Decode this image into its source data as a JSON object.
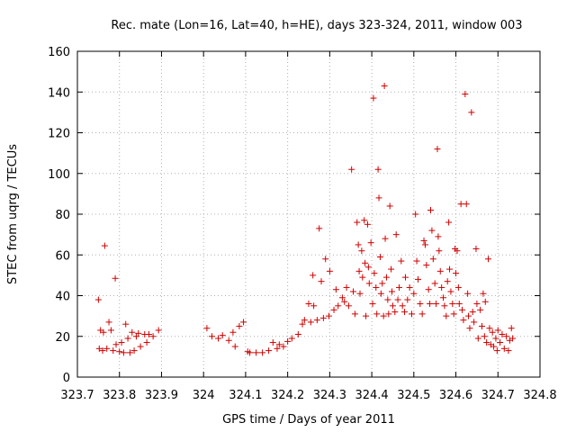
{
  "chart_data": {
    "type": "scatter",
    "title": "Rec. mate (Lon=16, Lat=40, h=HE), days 323-324, 2011, window 003",
    "xlabel": "GPS time / Days of year 2011",
    "ylabel": "STEC from uqrg / TECUs",
    "xlim": [
      323.7,
      324.8
    ],
    "ylim": [
      0,
      160
    ],
    "x_ticks": [
      "323.7",
      "323.8",
      "323.9",
      "324",
      "324.1",
      "324.2",
      "324.3",
      "324.4",
      "324.5",
      "324.6",
      "324.7",
      "324.8"
    ],
    "y_ticks": [
      "0",
      "20",
      "40",
      "60",
      "80",
      "100",
      "120",
      "140",
      "160"
    ],
    "grid": true,
    "marker": "plus",
    "color": "#d00000",
    "series": [
      {
        "points": [
          [
            323.75,
            38
          ],
          [
            323.752,
            14
          ],
          [
            323.755,
            23
          ],
          [
            323.76,
            13
          ],
          [
            323.765,
            64.5
          ],
          [
            323.762,
            22
          ],
          [
            323.77,
            14
          ],
          [
            323.775,
            27
          ],
          [
            323.78,
            23
          ],
          [
            323.785,
            13
          ],
          [
            323.79,
            48.5
          ],
          [
            323.792,
            16
          ],
          [
            323.8,
            12.5
          ],
          [
            323.805,
            17
          ],
          [
            323.81,
            12
          ],
          [
            323.815,
            26
          ],
          [
            323.82,
            19
          ],
          [
            323.825,
            12
          ],
          [
            323.83,
            22
          ],
          [
            323.835,
            13
          ],
          [
            323.84,
            20
          ],
          [
            323.845,
            21.5
          ],
          [
            323.85,
            15
          ],
          [
            323.86,
            21
          ],
          [
            323.865,
            17
          ],
          [
            323.87,
            21
          ],
          [
            323.88,
            20
          ],
          [
            323.893,
            23
          ],
          [
            324.008,
            24
          ],
          [
            324.02,
            20
          ],
          [
            324.035,
            19
          ],
          [
            324.045,
            20.5
          ],
          [
            324.06,
            18
          ],
          [
            324.07,
            22
          ],
          [
            324.075,
            15
          ],
          [
            324.085,
            25
          ],
          [
            324.095,
            27
          ],
          [
            324.105,
            12.5
          ],
          [
            324.11,
            12
          ],
          [
            324.125,
            12
          ],
          [
            324.14,
            12
          ],
          [
            324.155,
            13
          ],
          [
            324.165,
            17
          ],
          [
            324.175,
            14
          ],
          [
            324.18,
            16
          ],
          [
            324.19,
            15
          ],
          [
            324.2,
            17.5
          ],
          [
            324.21,
            19
          ],
          [
            324.225,
            21
          ],
          [
            324.235,
            26
          ],
          [
            324.24,
            28
          ],
          [
            324.25,
            36
          ],
          [
            324.255,
            27
          ],
          [
            324.26,
            50
          ],
          [
            324.262,
            35
          ],
          [
            324.27,
            28
          ],
          [
            324.275,
            73
          ],
          [
            324.28,
            47
          ],
          [
            324.285,
            29
          ],
          [
            324.29,
            58
          ],
          [
            324.298,
            30
          ],
          [
            324.3,
            52
          ],
          [
            324.31,
            33
          ],
          [
            324.315,
            43
          ],
          [
            324.32,
            35
          ],
          [
            324.33,
            39
          ],
          [
            324.335,
            37
          ],
          [
            324.34,
            44
          ],
          [
            324.345,
            35
          ],
          [
            324.352,
            102
          ],
          [
            324.356,
            42
          ],
          [
            324.36,
            31
          ],
          [
            324.365,
            76
          ],
          [
            324.368,
            65
          ],
          [
            324.37,
            52
          ],
          [
            324.372,
            41
          ],
          [
            324.376,
            62
          ],
          [
            324.378,
            49
          ],
          [
            324.382,
            77
          ],
          [
            324.384,
            56
          ],
          [
            324.386,
            30
          ],
          [
            324.39,
            75
          ],
          [
            324.392,
            54
          ],
          [
            324.394,
            46
          ],
          [
            324.398,
            66
          ],
          [
            324.402,
            36
          ],
          [
            324.404,
            137
          ],
          [
            324.406,
            51
          ],
          [
            324.41,
            44
          ],
          [
            324.412,
            31
          ],
          [
            324.415,
            102
          ],
          [
            324.417,
            88
          ],
          [
            324.42,
            59
          ],
          [
            324.422,
            41
          ],
          [
            324.425,
            46
          ],
          [
            324.428,
            30
          ],
          [
            324.43,
            143
          ],
          [
            324.432,
            68
          ],
          [
            324.435,
            49
          ],
          [
            324.438,
            38
          ],
          [
            324.44,
            31
          ],
          [
            324.443,
            84
          ],
          [
            324.446,
            53
          ],
          [
            324.448,
            42
          ],
          [
            324.45,
            35
          ],
          [
            324.455,
            32
          ],
          [
            324.458,
            70
          ],
          [
            324.462,
            38
          ],
          [
            324.465,
            44
          ],
          [
            324.47,
            57
          ],
          [
            324.473,
            35
          ],
          [
            324.478,
            32
          ],
          [
            324.48,
            49
          ],
          [
            324.485,
            38
          ],
          [
            324.49,
            44
          ],
          [
            324.495,
            31
          ],
          [
            324.5,
            41
          ],
          [
            324.504,
            80
          ],
          [
            324.507,
            57
          ],
          [
            324.51,
            48
          ],
          [
            324.515,
            36
          ],
          [
            324.52,
            31
          ],
          [
            324.524,
            67
          ],
          [
            324.527,
            65
          ],
          [
            324.53,
            55
          ],
          [
            324.535,
            43
          ],
          [
            324.538,
            36
          ],
          [
            324.54,
            82
          ],
          [
            324.543,
            72
          ],
          [
            324.546,
            58
          ],
          [
            324.55,
            46
          ],
          [
            324.553,
            36
          ],
          [
            324.556,
            112
          ],
          [
            324.558,
            69
          ],
          [
            324.56,
            62
          ],
          [
            324.563,
            52
          ],
          [
            324.566,
            44
          ],
          [
            324.57,
            39
          ],
          [
            324.573,
            35
          ],
          [
            324.577,
            30
          ],
          [
            324.58,
            47
          ],
          [
            324.583,
            76
          ],
          [
            324.585,
            53
          ],
          [
            324.588,
            42
          ],
          [
            324.592,
            36
          ],
          [
            324.595,
            31
          ],
          [
            324.598,
            63
          ],
          [
            324.6,
            51
          ],
          [
            324.603,
            62
          ],
          [
            324.606,
            44
          ],
          [
            324.608,
            36
          ],
          [
            324.612,
            85
          ],
          [
            324.615,
            33
          ],
          [
            324.618,
            28
          ],
          [
            324.622,
            139
          ],
          [
            324.625,
            85
          ],
          [
            324.628,
            41
          ],
          [
            324.63,
            30
          ],
          [
            324.633,
            24
          ],
          [
            324.637,
            130
          ],
          [
            324.64,
            32
          ],
          [
            324.643,
            27
          ],
          [
            324.648,
            63
          ],
          [
            324.65,
            36
          ],
          [
            324.653,
            19
          ],
          [
            324.658,
            33
          ],
          [
            324.662,
            25
          ],
          [
            324.665,
            41
          ],
          [
            324.668,
            20
          ],
          [
            324.67,
            37
          ],
          [
            324.673,
            17
          ],
          [
            324.677,
            58
          ],
          [
            324.68,
            24
          ],
          [
            324.683,
            16
          ],
          [
            324.687,
            22
          ],
          [
            324.69,
            15
          ],
          [
            324.695,
            19
          ],
          [
            324.698,
            13
          ],
          [
            324.7,
            23
          ],
          [
            324.705,
            17
          ],
          [
            324.71,
            21
          ],
          [
            324.715,
            14
          ],
          [
            324.72,
            20
          ],
          [
            324.725,
            13
          ],
          [
            324.728,
            18
          ],
          [
            324.732,
            24
          ],
          [
            324.735,
            19
          ]
        ]
      }
    ]
  }
}
